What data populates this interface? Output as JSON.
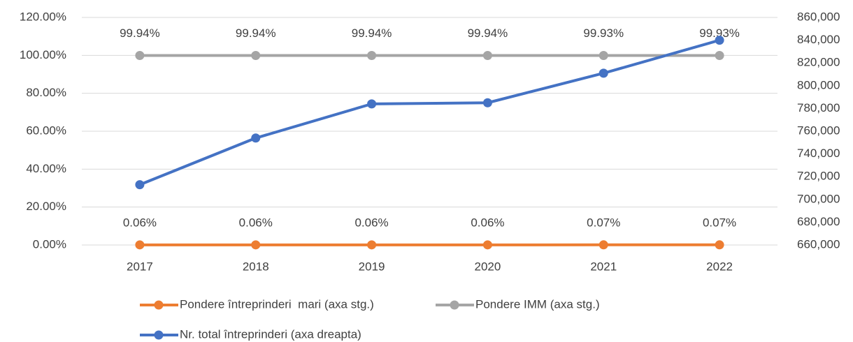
{
  "chart_data": {
    "type": "line",
    "categories": [
      "2017",
      "2018",
      "2019",
      "2020",
      "2021",
      "2022"
    ],
    "series": [
      {
        "name": "Pondere întreprinderi  mari (axa stg.)",
        "color": "#ed7d31",
        "values": [
          0.06,
          0.06,
          0.06,
          0.06,
          0.07,
          0.07
        ],
        "value_labels": [
          "0.06%",
          "0.06%",
          "0.06%",
          "0.06%",
          "0.07%",
          "0.07%"
        ]
      },
      {
        "name": "Pondere IMM (axa stg.)",
        "color": "#a5a5a5",
        "values": [
          99.94,
          99.94,
          99.94,
          99.94,
          99.93,
          99.93
        ],
        "value_labels": [
          "99.94%",
          "99.94%",
          "99.94%",
          "99.94%",
          "99.93%",
          "99.93%"
        ]
      },
      {
        "name": "Nr. total întreprinderi (axa dreapta)",
        "color": "#4472c4",
        "axis": "y2",
        "values": [
          713000,
          754000,
          784000,
          785000,
          811000,
          840000
        ]
      }
    ],
    "ylim": [
      0,
      120
    ],
    "yticks": [
      {
        "value": 0,
        "label": "0.00%"
      },
      {
        "value": 20,
        "label": "20.00%"
      },
      {
        "value": 40,
        "label": "40.00%"
      },
      {
        "value": 60,
        "label": "60.00%"
      },
      {
        "value": 80,
        "label": "80.00%"
      },
      {
        "value": 100,
        "label": "100.00%"
      },
      {
        "value": 120,
        "label": "120.00%"
      }
    ],
    "y2lim": [
      660000,
      860000
    ],
    "y2ticks": [
      {
        "value": 660000,
        "label": "660,000"
      },
      {
        "value": 680000,
        "label": "680,000"
      },
      {
        "value": 700000,
        "label": "700,000"
      },
      {
        "value": 720000,
        "label": "720,000"
      },
      {
        "value": 740000,
        "label": "740,000"
      },
      {
        "value": 760000,
        "label": "760,000"
      },
      {
        "value": 780000,
        "label": "780,000"
      },
      {
        "value": 800000,
        "label": "800,000"
      },
      {
        "value": 820000,
        "label": "820,000"
      },
      {
        "value": 840000,
        "label": "840,000"
      },
      {
        "value": 860000,
        "label": "860,000"
      }
    ],
    "grid": true,
    "legend": "bottom"
  }
}
